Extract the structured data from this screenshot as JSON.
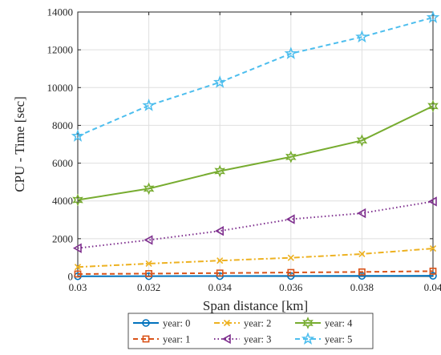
{
  "chart_data": {
    "type": "line",
    "title": "",
    "xlabel": "Span distance [km]",
    "ylabel": "CPU - Time [sec]",
    "xlim": [
      0.03,
      0.04
    ],
    "ylim": [
      0,
      14000
    ],
    "grid": true,
    "legend_position": "bottom-outside",
    "x": [
      0.03,
      0.032,
      0.034,
      0.036,
      0.038,
      0.04
    ],
    "x_tick_labels": [
      "0.03",
      "0.032",
      "0.034",
      "0.036",
      "0.038",
      "0.04"
    ],
    "y_ticks": [
      0,
      2000,
      4000,
      6000,
      8000,
      10000,
      12000,
      14000
    ],
    "y_tick_labels": [
      "0",
      "2000",
      "4000",
      "6000",
      "8000",
      "10000",
      "12000",
      "14000"
    ],
    "series": [
      {
        "name": "year: 0",
        "values": [
          10,
          15,
          20,
          25,
          30,
          35
        ],
        "color": "#0072BD",
        "line_style": "solid",
        "marker": "circle"
      },
      {
        "name": "year: 1",
        "values": [
          130,
          150,
          180,
          210,
          240,
          280
        ],
        "color": "#D95319",
        "line_style": "dashed",
        "marker": "square"
      },
      {
        "name": "year: 2",
        "values": [
          500,
          680,
          840,
          990,
          1190,
          1480
        ],
        "color": "#EDB120",
        "line_style": "dash-dot",
        "marker": "x"
      },
      {
        "name": "year: 3",
        "values": [
          1500,
          1930,
          2410,
          3030,
          3350,
          3970
        ],
        "color": "#7E2F8E",
        "line_style": "dotted",
        "marker": "triangle-left"
      },
      {
        "name": "year: 4",
        "values": [
          4050,
          4650,
          5580,
          6330,
          7200,
          9020
        ],
        "color": "#77AC30",
        "line_style": "solid",
        "marker": "hexagram"
      },
      {
        "name": "year: 5",
        "values": [
          7430,
          9050,
          10280,
          11800,
          12680,
          13710
        ],
        "color": "#4DBEEE",
        "line_style": "dashed",
        "marker": "pentagram"
      }
    ]
  }
}
